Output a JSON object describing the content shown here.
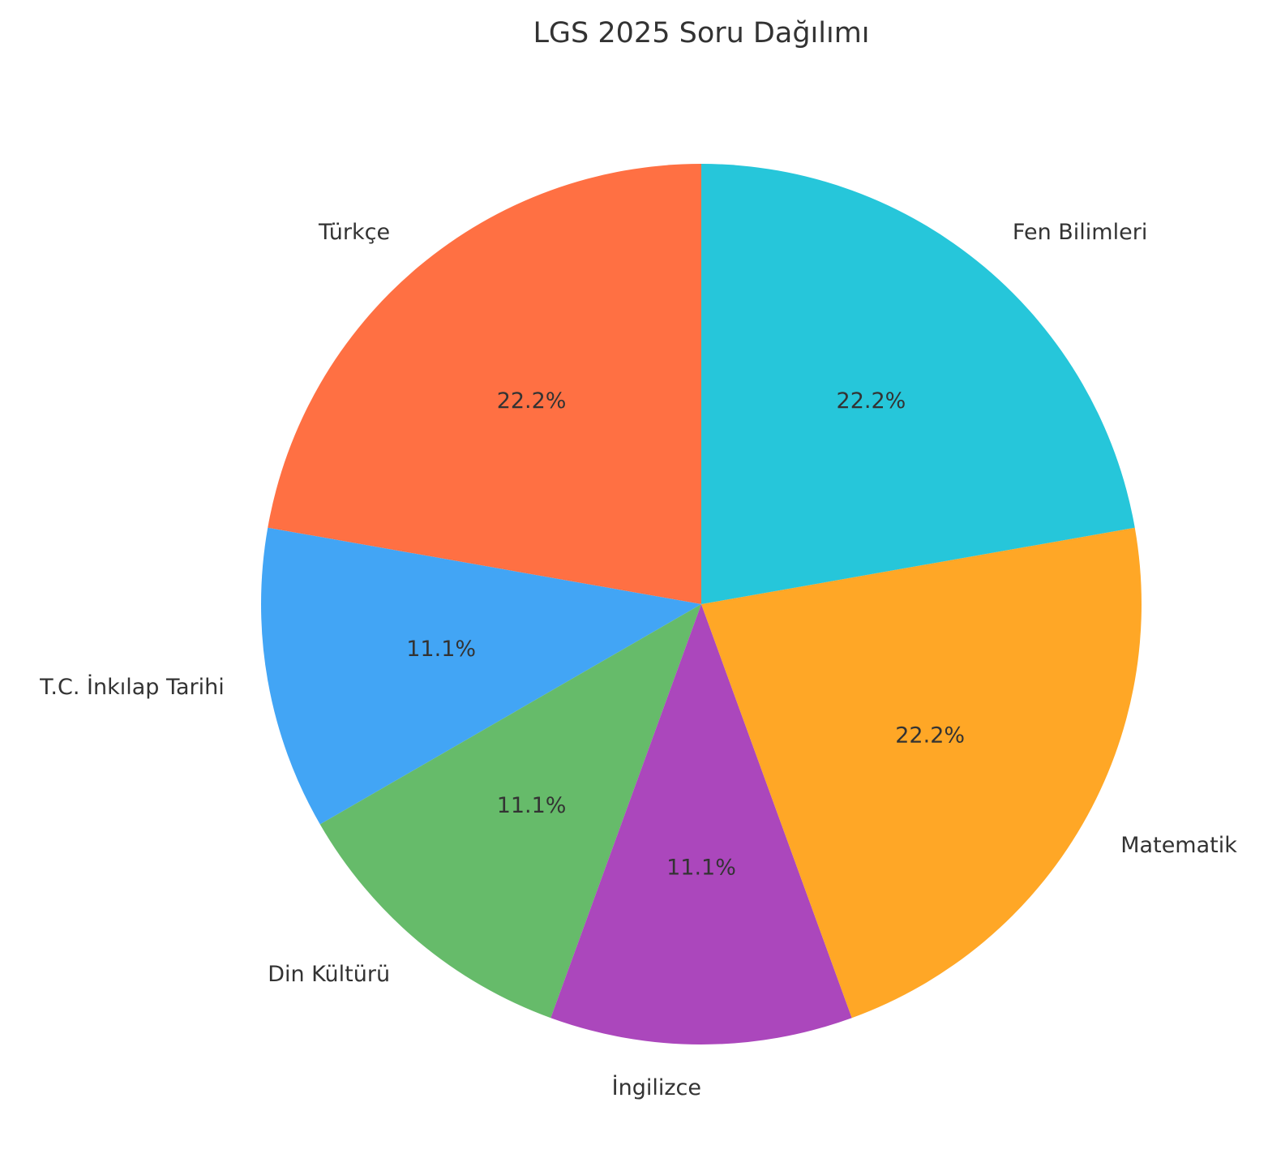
{
  "chart_data": {
    "type": "pie",
    "title": "LGS 2025 Soru Dağılımı",
    "start_angle_deg": 90,
    "direction": "counterclockwise",
    "slices": [
      {
        "label": "Türkçe",
        "value": 20,
        "percent_label": "22.2%",
        "color": "#FF7043"
      },
      {
        "label": "T.C. İnkılap Tarihi",
        "value": 10,
        "percent_label": "11.1%",
        "color": "#42A5F5"
      },
      {
        "label": "Din Kültürü",
        "value": 10,
        "percent_label": "11.1%",
        "color": "#66BB6A"
      },
      {
        "label": "İngilizce",
        "value": 10,
        "percent_label": "11.1%",
        "color": "#AB47BC"
      },
      {
        "label": "Matematik",
        "value": 20,
        "percent_label": "22.2%",
        "color": "#FFA726"
      },
      {
        "label": "Fen Bilimleri",
        "value": 20,
        "percent_label": "22.2%",
        "color": "#26C6DA"
      }
    ]
  }
}
